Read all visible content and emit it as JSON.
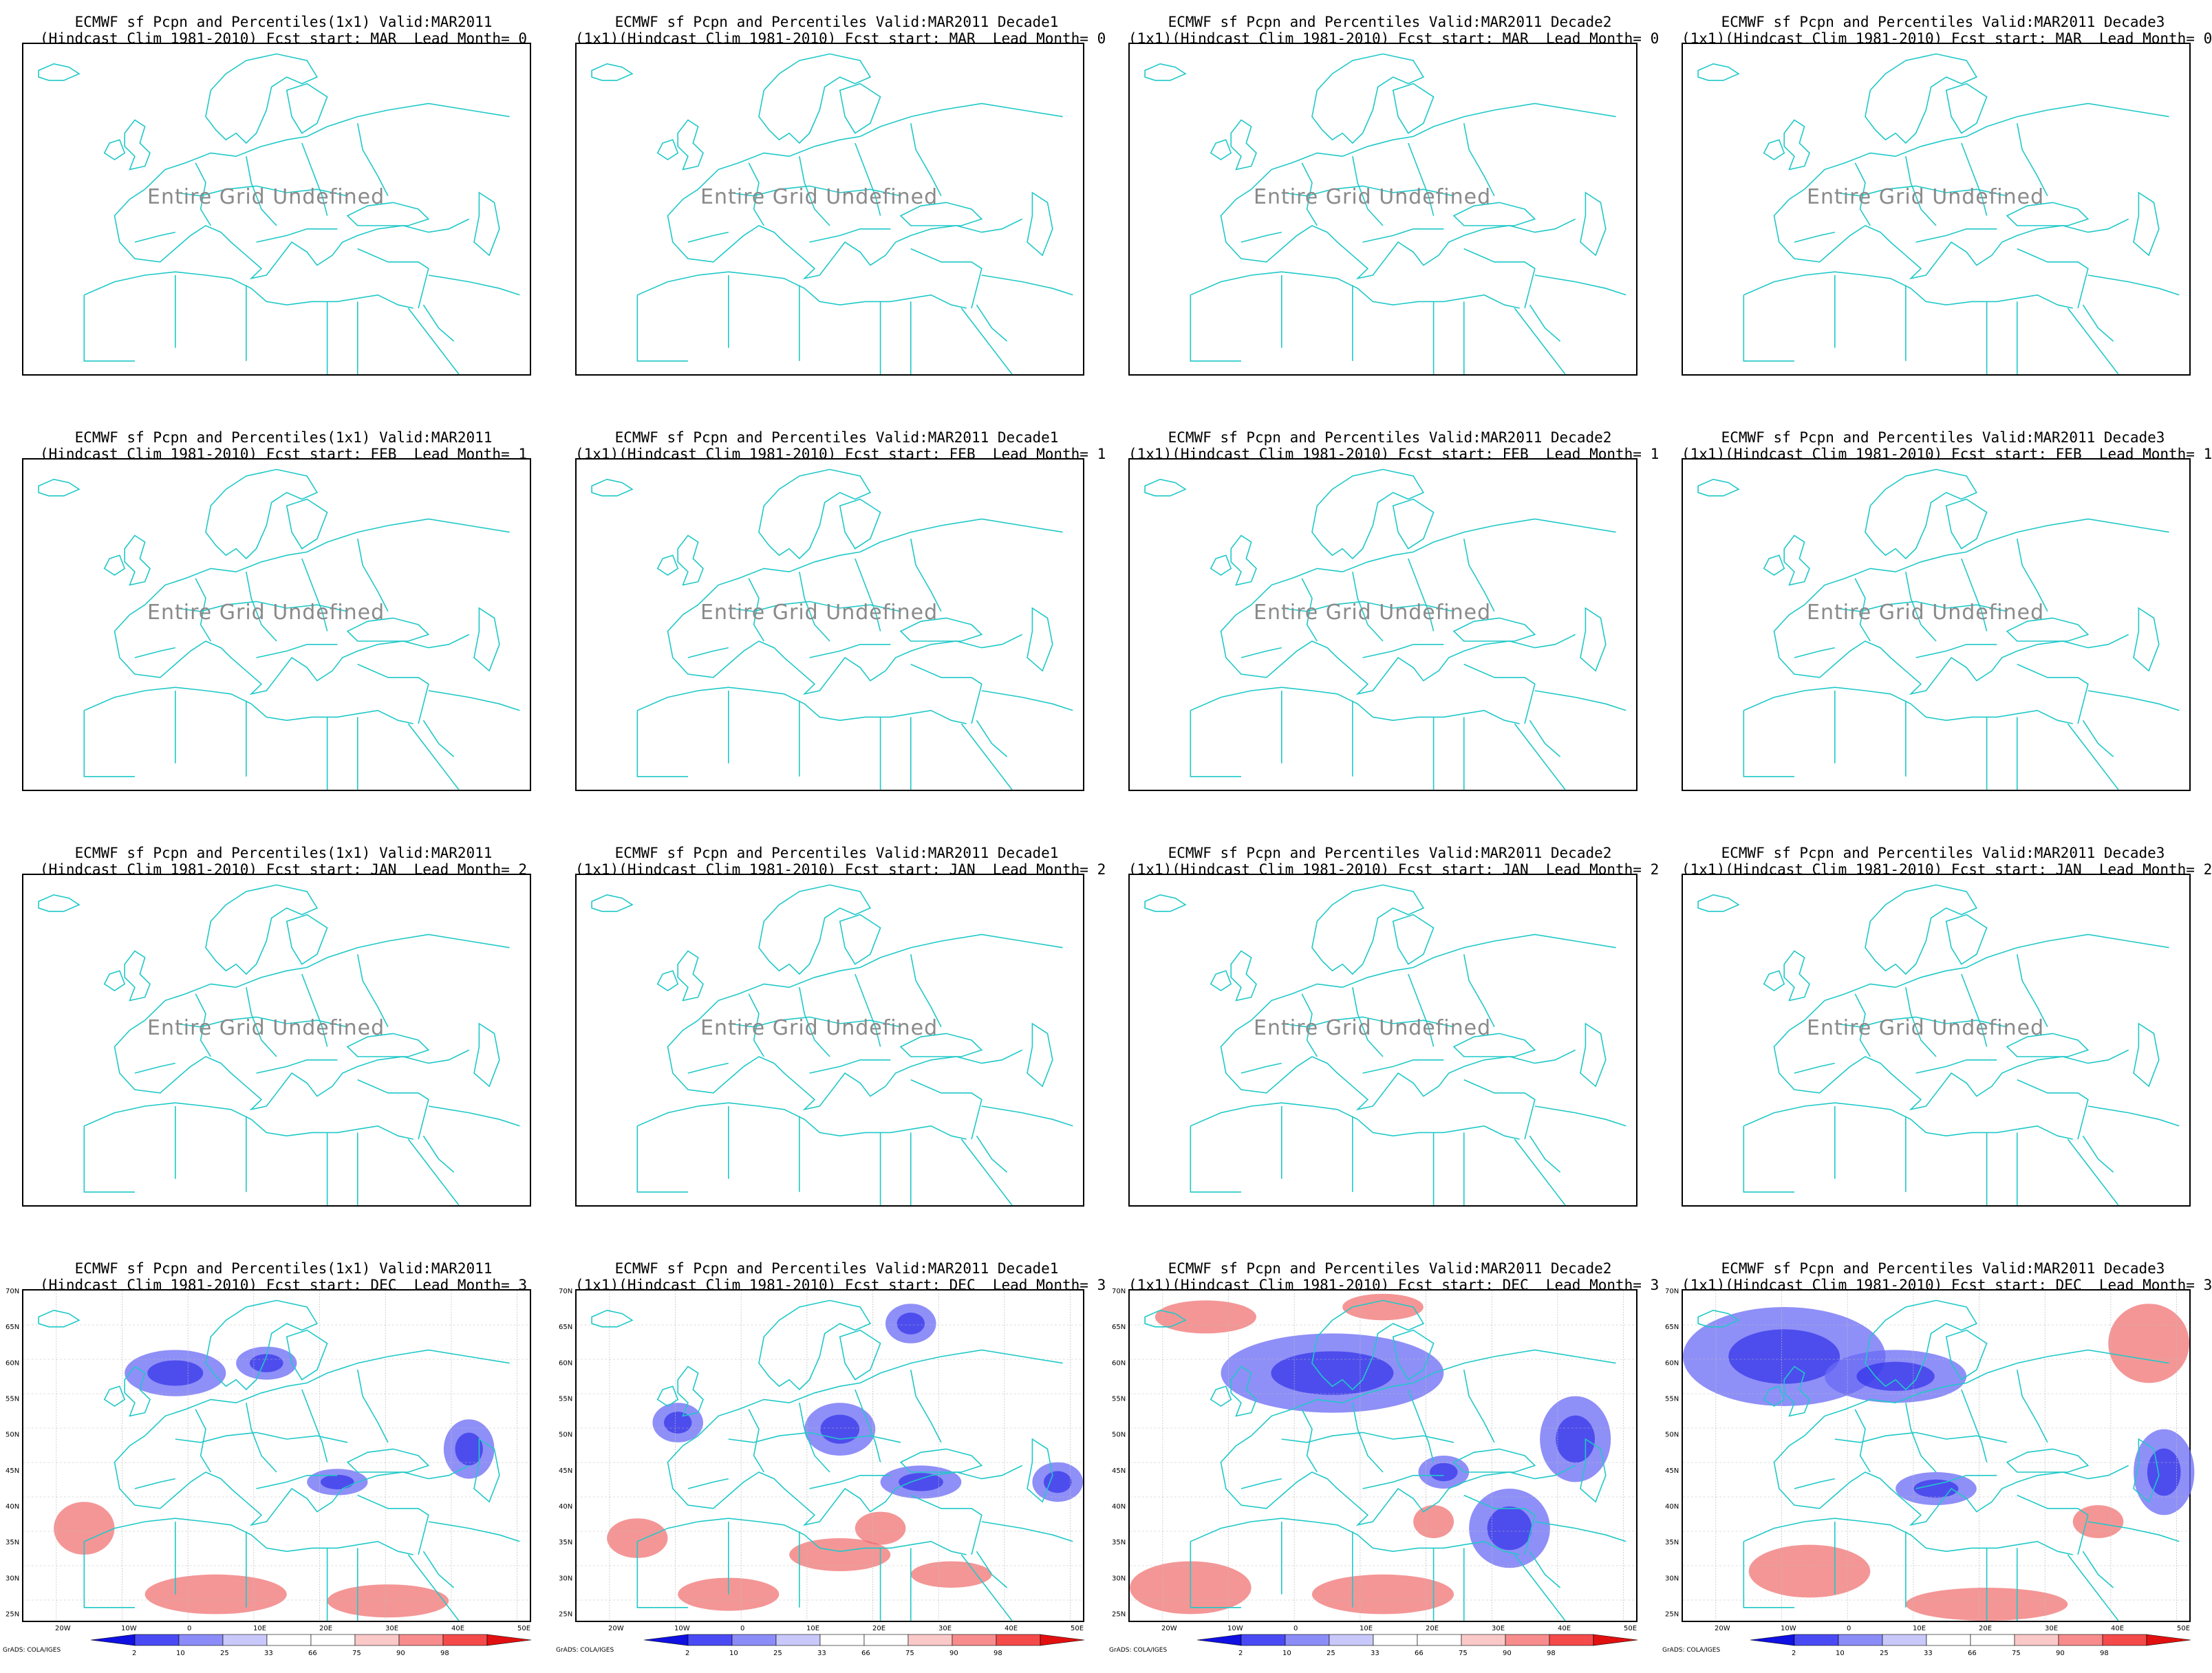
{
  "panels": [
    {
      "title1": "ECMWF sf Pcpn and Percentiles(1x1) Valid:MAR2011",
      "title2": "(Hindcast Clim 1981-2010) Fcst start: MAR  Lead Month= 0",
      "status": "Entire Grid Undefined"
    },
    {
      "title1": "ECMWF sf Pcpn and Percentiles Valid:MAR2011 Decade1",
      "title2": "(1x1)(Hindcast Clim 1981-2010) Fcst start: MAR  Lead Month= 0",
      "status": "Entire Grid Undefined"
    },
    {
      "title1": "ECMWF sf Pcpn and Percentiles Valid:MAR2011 Decade2",
      "title2": "(1x1)(Hindcast Clim 1981-2010) Fcst start: MAR  Lead Month= 0",
      "status": "Entire Grid Undefined"
    },
    {
      "title1": "ECMWF sf Pcpn and Percentiles Valid:MAR2011 Decade3",
      "title2": "(1x1)(Hindcast Clim 1981-2010) Fcst start: MAR  Lead Month= 0",
      "status": "Entire Grid Undefined"
    },
    {
      "title1": "ECMWF sf Pcpn and Percentiles(1x1) Valid:MAR2011",
      "title2": "(Hindcast Clim 1981-2010) Fcst start: FEB  Lead Month= 1",
      "status": "Entire Grid Undefined"
    },
    {
      "title1": "ECMWF sf Pcpn and Percentiles Valid:MAR2011 Decade1",
      "title2": "(1x1)(Hindcast Clim 1981-2010) Fcst start: FEB  Lead Month= 1",
      "status": "Entire Grid Undefined"
    },
    {
      "title1": "ECMWF sf Pcpn and Percentiles Valid:MAR2011 Decade2",
      "title2": "(1x1)(Hindcast Clim 1981-2010) Fcst start: FEB  Lead Month= 1",
      "status": "Entire Grid Undefined"
    },
    {
      "title1": "ECMWF sf Pcpn and Percentiles Valid:MAR2011 Decade3",
      "title2": "(1x1)(Hindcast Clim 1981-2010) Fcst start: FEB  Lead Month= 1",
      "status": "Entire Grid Undefined"
    },
    {
      "title1": "ECMWF sf Pcpn and Percentiles(1x1) Valid:MAR2011",
      "title2": "(Hindcast Clim 1981-2010) Fcst start: JAN  Lead Month= 2",
      "status": "Entire Grid Undefined"
    },
    {
      "title1": "ECMWF sf Pcpn and Percentiles Valid:MAR2011 Decade1",
      "title2": "(1x1)(Hindcast Clim 1981-2010) Fcst start: JAN  Lead Month= 2",
      "status": "Entire Grid Undefined"
    },
    {
      "title1": "ECMWF sf Pcpn and Percentiles Valid:MAR2011 Decade2",
      "title2": "(1x1)(Hindcast Clim 1981-2010) Fcst start: JAN  Lead Month= 2",
      "status": "Entire Grid Undefined"
    },
    {
      "title1": "ECMWF sf Pcpn and Percentiles Valid:MAR2011 Decade3",
      "title2": "(1x1)(Hindcast Clim 1981-2010) Fcst start: JAN  Lead Month= 2",
      "status": "Entire Grid Undefined"
    },
    {
      "title1": "ECMWF sf Pcpn and Percentiles(1x1) Valid:MAR2011",
      "title2": "(Hindcast Clim 1981-2010) Fcst start: DEC  Lead Month= 3",
      "status": ""
    },
    {
      "title1": "ECMWF sf Pcpn and Percentiles Valid:MAR2011 Decade1",
      "title2": "(1x1)(Hindcast Clim 1981-2010) Fcst start: DEC  Lead Month= 3",
      "status": ""
    },
    {
      "title1": "ECMWF sf Pcpn and Percentiles Valid:MAR2011 Decade2",
      "title2": "(1x1)(Hindcast Clim 1981-2010) Fcst start: DEC  Lead Month= 3",
      "status": ""
    },
    {
      "title1": "ECMWF sf Pcpn and Percentiles Valid:MAR2011 Decade3",
      "title2": "(1x1)(Hindcast Clim 1981-2010) Fcst start: DEC  Lead Month= 3",
      "status": ""
    }
  ],
  "axes": {
    "lat_labels": [
      "70N",
      "65N",
      "60N",
      "55N",
      "50N",
      "45N",
      "40N",
      "35N",
      "30N",
      "25N"
    ],
    "lon_labels": [
      "20W",
      "10W",
      "0",
      "10E",
      "20E",
      "30E",
      "40E",
      "50E"
    ]
  },
  "colorbar": {
    "labels": [
      "2",
      "10",
      "25",
      "33",
      "66",
      "75",
      "90",
      "98"
    ],
    "colors": [
      "#1010e0",
      "#4a4af5",
      "#8c8cf8",
      "#c8c8fb",
      "#ffffff",
      "#ffffff",
      "#fbc8c8",
      "#f88c8c",
      "#f54a4a",
      "#e01010"
    ]
  },
  "credit": "GrADS: COLA/IGES",
  "colors": {
    "coast": "#20c8c8",
    "blue": "#6a6af5",
    "red": "#f06a6a",
    "contour": "#222222"
  }
}
